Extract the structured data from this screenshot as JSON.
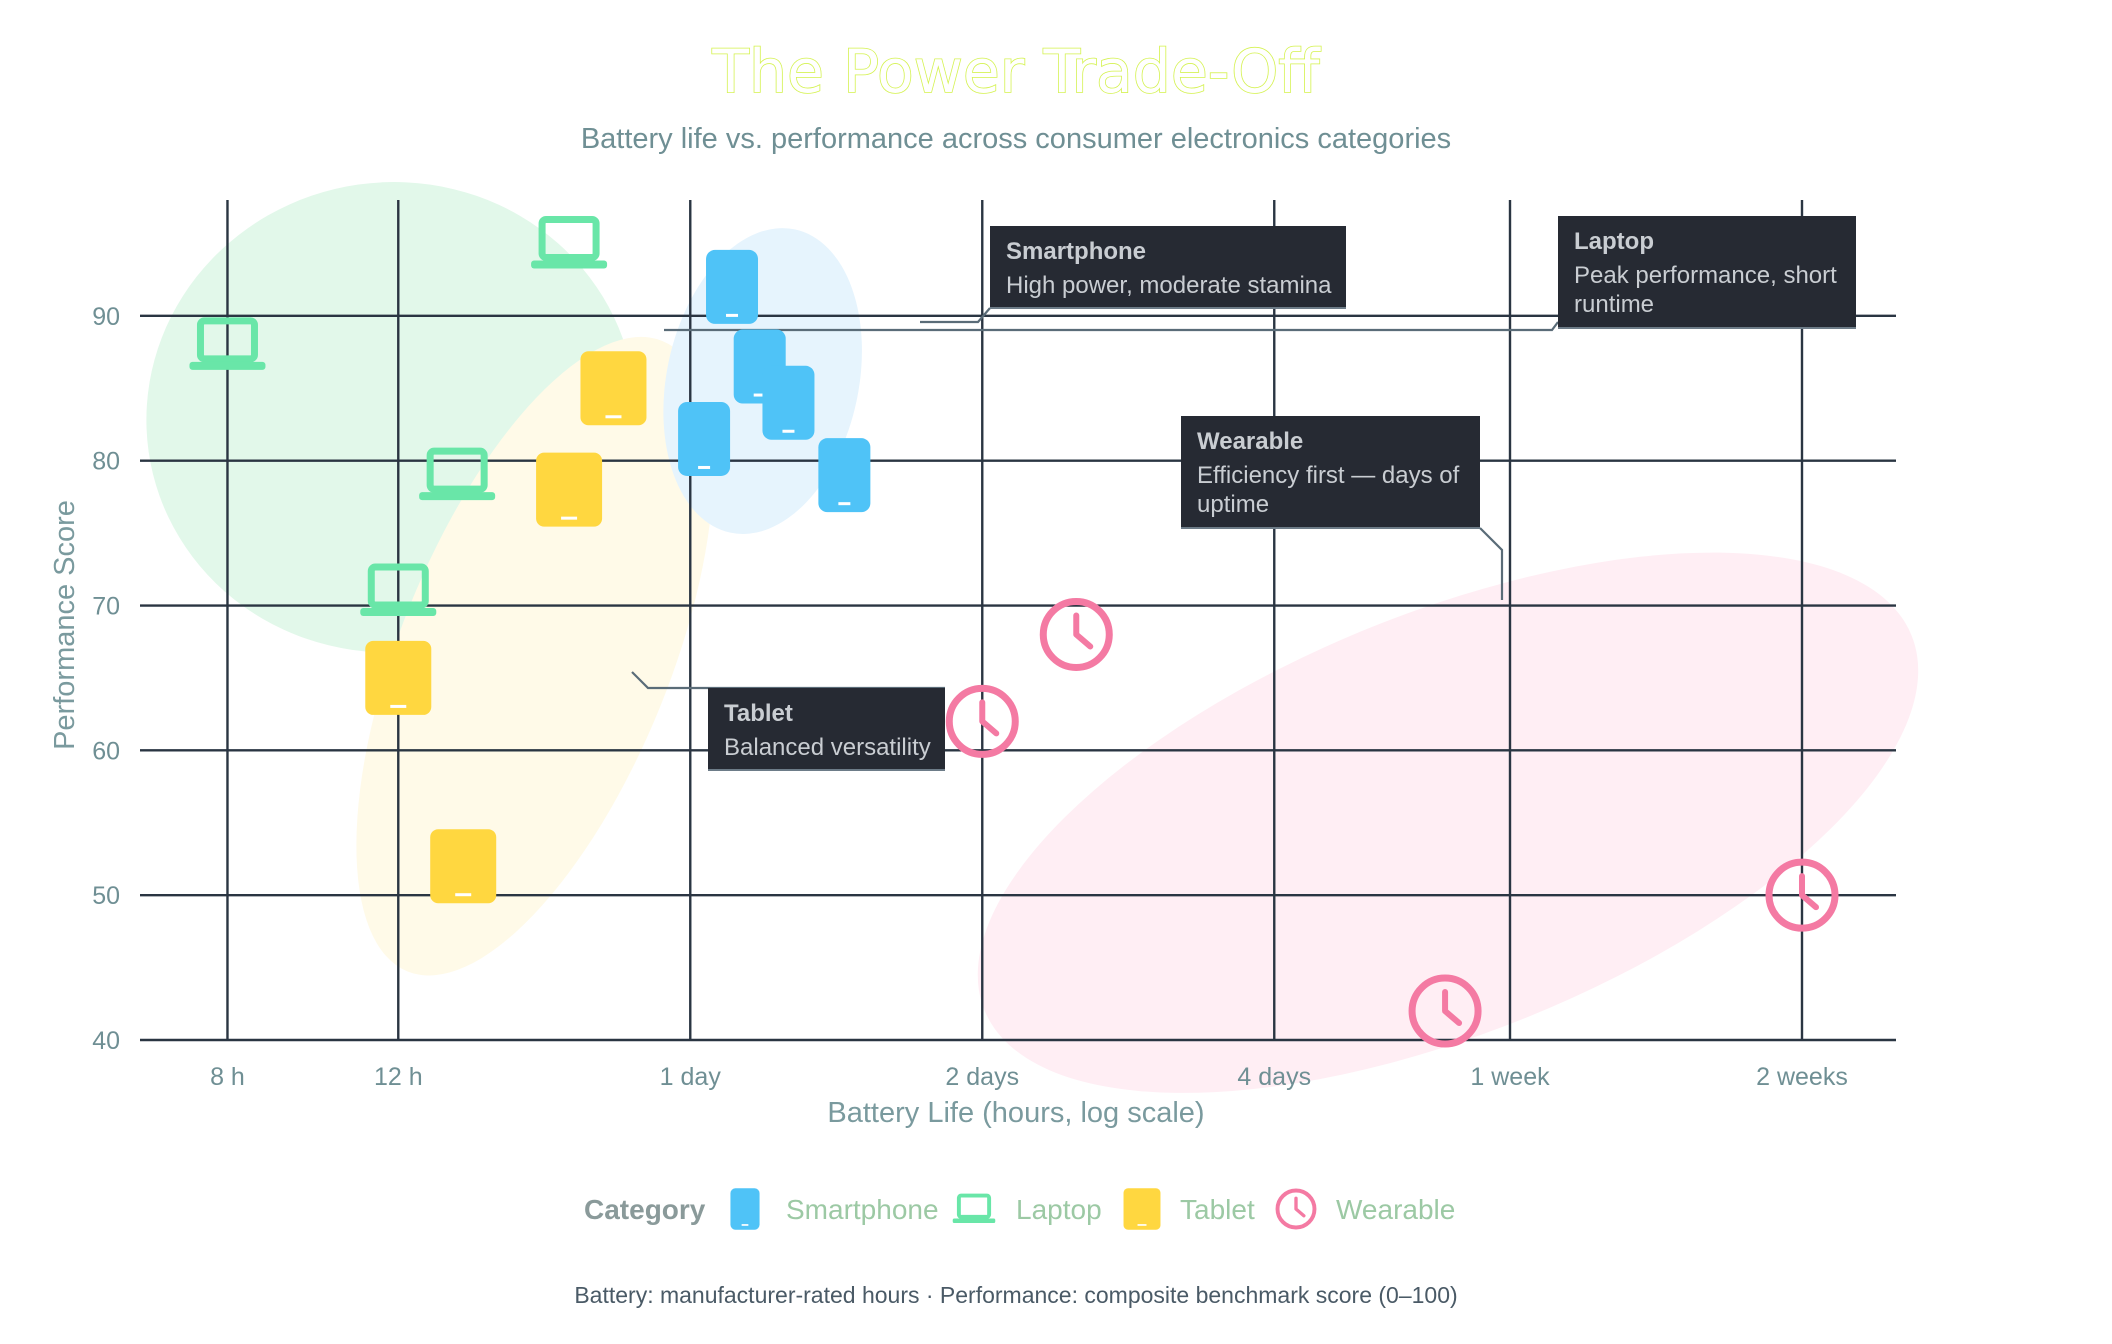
{
  "chart_data": {
    "type": "scatter",
    "title": "The Power Trade-Off",
    "subtitle": "Battery life vs. performance across consumer electronics categories",
    "xlabel": "Battery Life (hours, log scale)",
    "ylabel": "Performance Score",
    "x_scale": "log",
    "x_range_hours": [
      6.5,
      420
    ],
    "y_range": [
      40,
      98
    ],
    "x_ticks": [
      {
        "value": 8,
        "label": "8 h"
      },
      {
        "value": 12,
        "label": "12 h"
      },
      {
        "value": 24,
        "label": "1 day"
      },
      {
        "value": 48,
        "label": "2 days"
      },
      {
        "value": 96,
        "label": "4 days"
      },
      {
        "value": 168,
        "label": "1 week"
      },
      {
        "value": 336,
        "label": "2 weeks"
      }
    ],
    "y_ticks": [
      40,
      50,
      60,
      70,
      80,
      90
    ],
    "grid": true,
    "legend": {
      "title": "Category",
      "position": "bottom-center"
    },
    "series": [
      {
        "name": "Smartphone",
        "color": "#4fc3f7",
        "icon": "smartphone-icon",
        "points": [
          {
            "x": 24.8,
            "y": 81.5
          },
          {
            "x": 26.5,
            "y": 92
          },
          {
            "x": 28.3,
            "y": 86.5
          },
          {
            "x": 30.3,
            "y": 84
          },
          {
            "x": 34.6,
            "y": 79
          }
        ]
      },
      {
        "name": "Laptop",
        "color": "#69e6a8",
        "icon": "laptop-icon",
        "points": [
          {
            "x": 8.0,
            "y": 88
          },
          {
            "x": 12.0,
            "y": 71
          },
          {
            "x": 13.8,
            "y": 79
          },
          {
            "x": 18.0,
            "y": 95
          }
        ]
      },
      {
        "name": "Tablet",
        "color": "#ffd740",
        "icon": "tablet-icon",
        "points": [
          {
            "x": 12.0,
            "y": 65
          },
          {
            "x": 14.0,
            "y": 52
          },
          {
            "x": 18.0,
            "y": 78
          },
          {
            "x": 20.0,
            "y": 85
          }
        ]
      },
      {
        "name": "Wearable",
        "color": "#f47aa3",
        "icon": "watch-icon",
        "points": [
          {
            "x": 48.0,
            "y": 62
          },
          {
            "x": 60.0,
            "y": 68
          },
          {
            "x": 144.0,
            "y": 42
          },
          {
            "x": 336.0,
            "y": 50
          }
        ]
      }
    ],
    "clusters": [
      {
        "name": "Laptop",
        "color": "#e2f8ea"
      },
      {
        "name": "Tablet",
        "color": "#fffae8"
      },
      {
        "name": "Smartphone",
        "color": "#e6f4fd"
      },
      {
        "name": "Wearable",
        "color": "#ffeef4"
      }
    ],
    "annotations": [
      {
        "title": "Smartphone",
        "lines": [
          "High power, moderate stamina"
        ]
      },
      {
        "title": "Laptop",
        "lines": [
          "Peak performance, short",
          "runtime"
        ]
      },
      {
        "title": "Wearable",
        "lines": [
          "Efficiency first — days of",
          "uptime"
        ]
      },
      {
        "title": "Tablet",
        "lines": [
          "Balanced versatility"
        ]
      }
    ],
    "footnote": "Battery: manufacturer-rated hours · Performance: composite benchmark score (0–100)"
  }
}
